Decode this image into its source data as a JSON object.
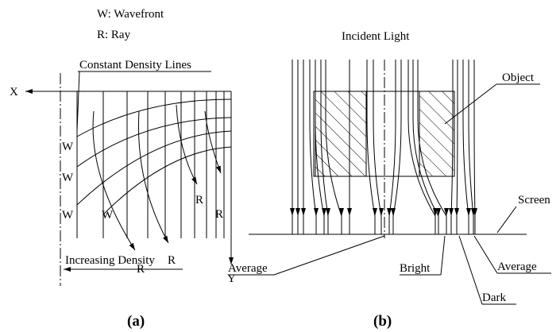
{
  "panel_a": {
    "legend": [
      "W: Wavefront",
      "R: Ray"
    ],
    "x_axis": "X",
    "y_axis": "Y",
    "density_lines_label": "Constant Density Lines",
    "density_label": "Increasing Density",
    "wavefront_labels": [
      "W",
      "W",
      "W",
      "W"
    ],
    "ray_labels": [
      "R",
      "R",
      "R",
      "R"
    ],
    "caption": "(a)"
  },
  "panel_b": {
    "title": "Incident Light",
    "object_label": "Object",
    "screen_label": "Screen",
    "labels": [
      "Average",
      "Bright",
      "Average",
      "Dark"
    ],
    "caption": "(b)"
  }
}
